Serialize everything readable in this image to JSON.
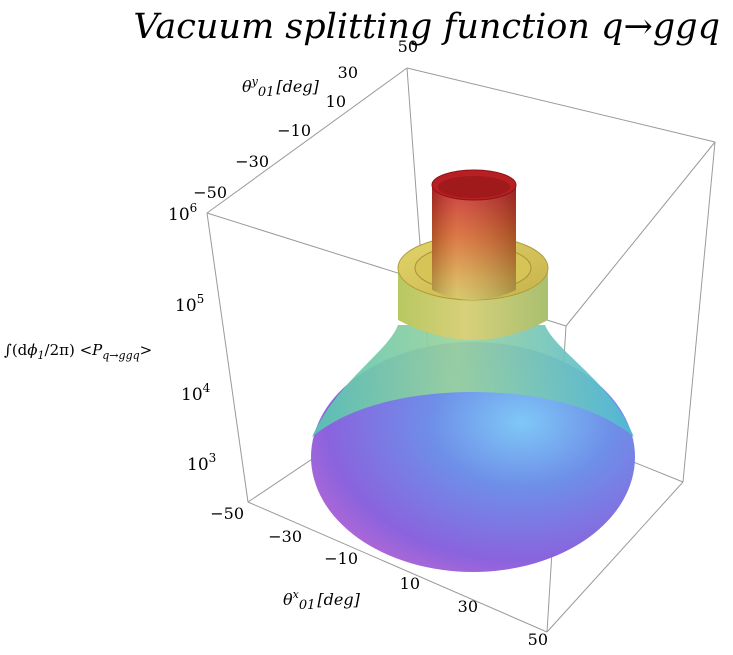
{
  "chart_data": {
    "type": "surface",
    "title": "Vacuum splitting function q→ggq",
    "axes": {
      "x": {
        "label_main": "θ",
        "label_sup": "x",
        "label_sub": "01",
        "label_unit": "[deg]",
        "ticks": [
          "−50",
          "−30",
          "−10",
          "10",
          "30",
          "50"
        ],
        "range": [
          -50,
          50
        ]
      },
      "y": {
        "label_main": "θ",
        "label_sup": "y",
        "label_sub": "01",
        "label_unit": "[deg]",
        "ticks": [
          "−50",
          "−30",
          "−10",
          "10",
          "30",
          "50"
        ],
        "range": [
          -50,
          50
        ]
      },
      "z": {
        "label_prefix": "∫(d",
        "label_phi": "ϕ",
        "label_phi_sub": "1",
        "label_mid": "/2π) <",
        "label_P": "P",
        "label_P_sub": "q→ggq",
        "label_suffix": ">",
        "ticks": [
          {
            "value": 1000,
            "base": "10",
            "exp": "3"
          },
          {
            "value": 10000,
            "base": "10",
            "exp": "4"
          },
          {
            "value": 100000,
            "base": "10",
            "exp": "5"
          },
          {
            "value": 1000000,
            "base": "10",
            "exp": "6"
          }
        ],
        "scale": "log",
        "range": [
          1000,
          1000000
        ]
      }
    },
    "surface_profile": [
      {
        "radius_deg": 45,
        "value": 1800
      },
      {
        "radius_deg": 25,
        "value": 10000
      },
      {
        "radius_deg": 20,
        "value": 30000
      },
      {
        "radius_deg": 18,
        "value": 80000
      },
      {
        "radius_deg": 12,
        "value": 150000
      },
      {
        "radius_deg": 10,
        "value": 300000
      },
      {
        "radius_deg": 9,
        "value": 700000
      }
    ],
    "colormap": [
      "#b46bd6",
      "#6a6fe0",
      "#7fb0f0",
      "#a9e09a",
      "#e0d060",
      "#d56b3a",
      "#c82a2a"
    ]
  }
}
